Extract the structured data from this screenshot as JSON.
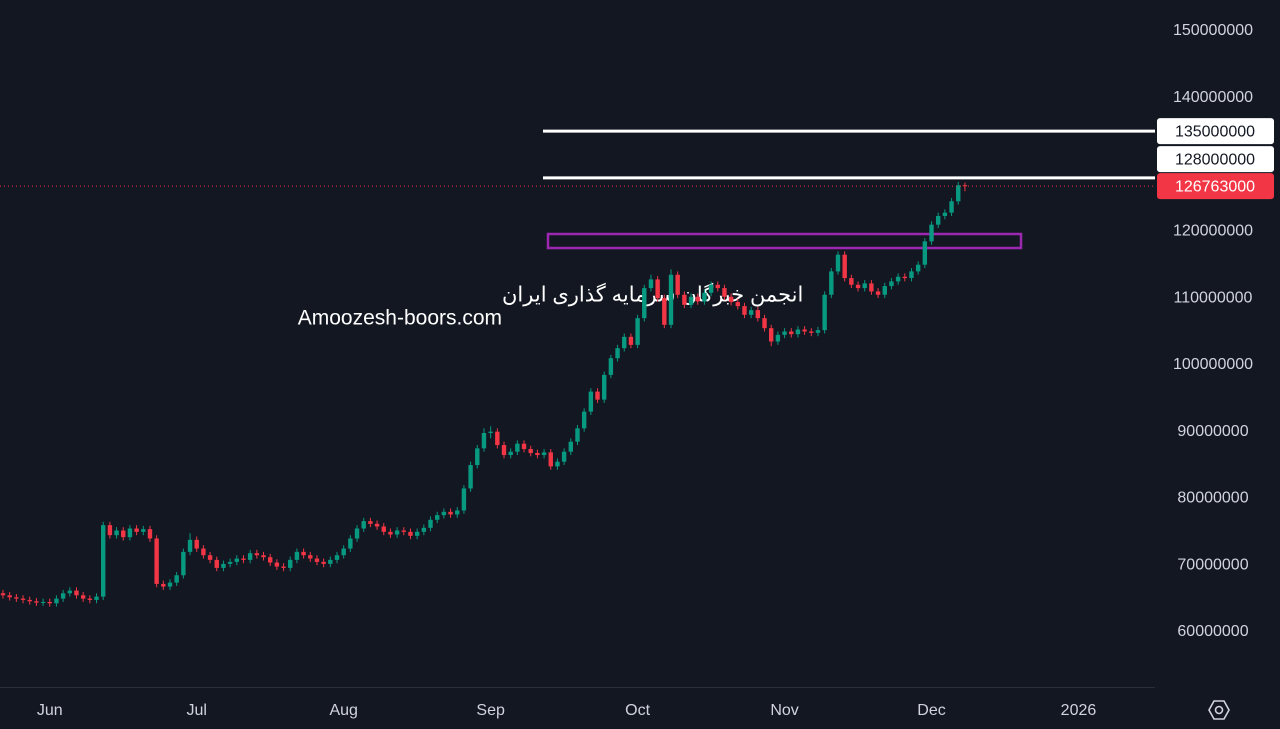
{
  "chart_data": {
    "type": "candlestick",
    "categories": [
      null,
      null,
      null,
      null,
      null,
      null,
      null,
      "Jun",
      null,
      null,
      null,
      null,
      null,
      null,
      null,
      null,
      null,
      null,
      null,
      null,
      null,
      null,
      null,
      null,
      null,
      null,
      null,
      null,
      null,
      "Jul",
      null,
      null,
      null,
      null,
      null,
      null,
      null,
      null,
      null,
      null,
      null,
      null,
      null,
      null,
      null,
      null,
      null,
      null,
      null,
      null,
      null,
      "Aug",
      null,
      null,
      null,
      null,
      null,
      null,
      null,
      null,
      null,
      null,
      null,
      null,
      null,
      null,
      null,
      null,
      null,
      null,
      null,
      null,
      null,
      "Sep",
      null,
      null,
      null,
      null,
      null,
      null,
      null,
      null,
      null,
      null,
      null,
      null,
      null,
      null,
      null,
      null,
      null,
      null,
      null,
      null,
      null,
      "Oct",
      null,
      null,
      null,
      null,
      null,
      null,
      null,
      null,
      null,
      null,
      null,
      null,
      null,
      null,
      null,
      null,
      null,
      null,
      null,
      null,
      null,
      "Nov",
      null,
      null,
      null,
      null,
      null,
      null,
      null,
      null,
      null,
      null,
      null,
      null,
      null,
      null,
      null,
      null,
      null,
      null,
      null,
      null,
      null,
      "Dec",
      null,
      null,
      null,
      null,
      null,
      null,
      null,
      null,
      null,
      null,
      null,
      null,
      null,
      null,
      null,
      null,
      null,
      null,
      null,
      null,
      null,
      "2026"
    ],
    "open": [
      65800000,
      65500000,
      65200000,
      65000000,
      64800000,
      64600000,
      64400000,
      64500000,
      64300000,
      65000000,
      65800000,
      66200000,
      65500000,
      65000000,
      64800000,
      65300000,
      76000000,
      74500000,
      75200000,
      74200000,
      75500000,
      75000000,
      75400000,
      74000000,
      67200000,
      66800000,
      67400000,
      68500000,
      72000000,
      73800000,
      72500000,
      71500000,
      70800000,
      69600000,
      70200000,
      70500000,
      71000000,
      70800000,
      71800000,
      71500000,
      71200000,
      70400000,
      69800000,
      69600000,
      70800000,
      72000000,
      71500000,
      71000000,
      70500000,
      70200000,
      70800000,
      71500000,
      72500000,
      74000000,
      75500000,
      76600000,
      76200000,
      75800000,
      75000000,
      74600000,
      75200000,
      75000000,
      74400000,
      75000000,
      75600000,
      76800000,
      77500000,
      78000000,
      77600000,
      78200000,
      81500000,
      85000000,
      87500000,
      89800000,
      90000000,
      88000000,
      86500000,
      87000000,
      88200000,
      87400000,
      86800000,
      86500000,
      86900000,
      84800000,
      85500000,
      87000000,
      88500000,
      90500000,
      93000000,
      96000000,
      94800000,
      98500000,
      101000000,
      102500000,
      104200000,
      103000000,
      107000000,
      111500000,
      112800000,
      110000000,
      106000000,
      113500000,
      110500000,
      109000000,
      110200000,
      109500000,
      110800000,
      112000000,
      111500000,
      110200000,
      109400000,
      108800000,
      107500000,
      108200000,
      107000000,
      105500000,
      103500000,
      104500000,
      105000000,
      104600000,
      105300000,
      105000000,
      104800000,
      105200000,
      110500000,
      114000000,
      116500000,
      113000000,
      112000000,
      111500000,
      112200000,
      111000000,
      110500000,
      111800000,
      112500000,
      113200000,
      113000000,
      114000000,
      115000000,
      118500000,
      121000000,
      122300000,
      122800000,
      124500000,
      126900000,
      null,
      null,
      null,
      null,
      null,
      null,
      null,
      null,
      null,
      null,
      null,
      null,
      null,
      null,
      null,
      null,
      null
    ],
    "high": [
      66300000,
      66000000,
      65700000,
      65500000,
      65300000,
      65100000,
      65000000,
      65000000,
      65500000,
      66300000,
      66700000,
      66700000,
      66000000,
      65500000,
      65800000,
      76500000,
      76500000,
      75700000,
      75700000,
      76000000,
      76000000,
      75900000,
      75900000,
      74500000,
      67700000,
      67900000,
      69000000,
      72500000,
      74800000,
      74300000,
      73000000,
      72000000,
      71300000,
      70700000,
      71000000,
      71500000,
      71500000,
      72300000,
      72300000,
      72000000,
      71700000,
      70900000,
      70300000,
      71300000,
      72500000,
      72500000,
      72000000,
      71500000,
      71000000,
      71300000,
      72000000,
      73000000,
      74500000,
      76000000,
      77100000,
      77100000,
      76700000,
      76300000,
      75500000,
      75700000,
      75700000,
      75500000,
      75500000,
      76100000,
      77300000,
      78000000,
      78500000,
      78500000,
      78700000,
      82000000,
      85500000,
      88000000,
      90500000,
      90800000,
      90500000,
      88500000,
      87500000,
      88700000,
      88700000,
      87900000,
      87300000,
      87400000,
      87400000,
      86000000,
      87500000,
      89000000,
      91000000,
      93500000,
      96500000,
      96500000,
      99000000,
      101500000,
      103000000,
      104700000,
      104700000,
      107500000,
      112000000,
      113500000,
      113300000,
      110500000,
      114300000,
      114000000,
      111000000,
      110700000,
      110700000,
      111300000,
      112500000,
      112500000,
      112000000,
      110700000,
      109900000,
      109300000,
      108700000,
      108700000,
      107500000,
      106000000,
      105000000,
      105500000,
      105500000,
      105800000,
      105800000,
      105500000,
      105700000,
      111000000,
      114500000,
      117000000,
      117000000,
      113500000,
      112500000,
      112700000,
      112700000,
      111500000,
      112300000,
      113000000,
      113700000,
      113700000,
      114500000,
      115500000,
      119000000,
      121500000,
      122800000,
      123300000,
      125000000,
      127400000,
      127300000,
      null,
      null,
      null,
      null,
      null,
      null,
      null,
      null,
      null,
      null,
      null,
      null,
      null,
      null,
      null,
      null,
      null
    ],
    "low": [
      65000000,
      64700000,
      64500000,
      64300000,
      64100000,
      63900000,
      63900000,
      63800000,
      63800000,
      64500000,
      65300000,
      65000000,
      64500000,
      64300000,
      64300000,
      64800000,
      74000000,
      74000000,
      73700000,
      73700000,
      74500000,
      74500000,
      73500000,
      66700000,
      66300000,
      66300000,
      66900000,
      68000000,
      71500000,
      72000000,
      71000000,
      70300000,
      69100000,
      69100000,
      69700000,
      70000000,
      70300000,
      70300000,
      71000000,
      70700000,
      69900000,
      69300000,
      69100000,
      69100000,
      70300000,
      71000000,
      70500000,
      70000000,
      69700000,
      69700000,
      70300000,
      71000000,
      72000000,
      73500000,
      75000000,
      75700000,
      75300000,
      74500000,
      74100000,
      74100000,
      74500000,
      73900000,
      73900000,
      74500000,
      75100000,
      76300000,
      77000000,
      77100000,
      77100000,
      77700000,
      81000000,
      84500000,
      87000000,
      89000000,
      87500000,
      86000000,
      86000000,
      86500000,
      86900000,
      86300000,
      86000000,
      86000000,
      84300000,
      84300000,
      85000000,
      86500000,
      88000000,
      90000000,
      92500000,
      94300000,
      94300000,
      98000000,
      100500000,
      102000000,
      102500000,
      102500000,
      106500000,
      111000000,
      109500000,
      105500000,
      105500000,
      110000000,
      108500000,
      108500000,
      109000000,
      109000000,
      110300000,
      111000000,
      109700000,
      108900000,
      108300000,
      107000000,
      107000000,
      106500000,
      105000000,
      102800000,
      103000000,
      104000000,
      104100000,
      104100000,
      104500000,
      104300000,
      104300000,
      104700000,
      110000000,
      113500000,
      112500000,
      111500000,
      111000000,
      111000000,
      110500000,
      110000000,
      110000000,
      111300000,
      112000000,
      112500000,
      112500000,
      113500000,
      114500000,
      118000000,
      120500000,
      121800000,
      122300000,
      124000000,
      126000000,
      null,
      null,
      null,
      null,
      null,
      null,
      null,
      null,
      null,
      null,
      null,
      null,
      null,
      null,
      null,
      null,
      null
    ],
    "close": [
      65500000,
      65200000,
      65000000,
      64800000,
      64600000,
      64400000,
      64500000,
      64300000,
      65000000,
      65800000,
      66200000,
      65500000,
      65000000,
      64800000,
      65300000,
      76000000,
      74500000,
      75200000,
      74200000,
      75500000,
      75000000,
      75400000,
      74000000,
      67200000,
      66800000,
      67400000,
      68500000,
      72000000,
      73800000,
      72500000,
      71500000,
      70800000,
      69600000,
      70200000,
      70500000,
      71000000,
      70800000,
      71800000,
      71500000,
      71200000,
      70400000,
      69800000,
      69600000,
      70800000,
      72000000,
      71500000,
      71000000,
      70500000,
      70200000,
      70800000,
      71500000,
      72500000,
      74000000,
      75500000,
      76600000,
      76200000,
      75800000,
      75000000,
      74600000,
      75200000,
      75000000,
      74400000,
      75000000,
      75600000,
      76800000,
      77500000,
      78000000,
      77600000,
      78200000,
      81500000,
      85000000,
      87500000,
      89800000,
      90000000,
      88000000,
      86500000,
      87000000,
      88200000,
      87400000,
      86800000,
      86500000,
      86900000,
      84800000,
      85500000,
      87000000,
      88500000,
      90500000,
      93000000,
      96000000,
      94800000,
      98500000,
      101000000,
      102500000,
      104200000,
      103000000,
      107000000,
      111500000,
      112800000,
      110000000,
      106000000,
      113500000,
      110500000,
      109000000,
      110200000,
      109500000,
      110800000,
      112000000,
      111500000,
      110200000,
      109400000,
      108800000,
      107500000,
      108200000,
      107000000,
      105500000,
      103500000,
      104500000,
      105000000,
      104600000,
      105300000,
      105000000,
      104800000,
      105200000,
      110500000,
      114000000,
      116500000,
      113000000,
      112000000,
      111500000,
      112200000,
      111000000,
      110500000,
      111800000,
      112500000,
      113200000,
      113000000,
      114000000,
      115000000,
      118500000,
      121000000,
      122300000,
      122800000,
      124500000,
      126900000,
      126763000,
      null,
      null,
      null,
      null,
      null,
      null,
      null,
      null,
      null,
      null,
      null,
      null,
      null,
      null,
      null,
      null,
      null
    ],
    "up_color": "#089981",
    "down_color": "#f23645",
    "ylim": [
      51764000,
      154642000
    ],
    "yticks": [
      60000000,
      70000000,
      80000000,
      90000000,
      100000000,
      110000000,
      120000000,
      140000000,
      150000000
    ],
    "levels": [
      135000000,
      128000000
    ],
    "level_color": "#ffffff",
    "zone": {
      "top": 119600000,
      "bottom": 117500000,
      "color": "#9c27b0"
    }
  },
  "watermark": {
    "line1": "انجمن خبرگان سرمایه گذاری ایران",
    "line2": "Amoozesh-boors.com"
  }
}
